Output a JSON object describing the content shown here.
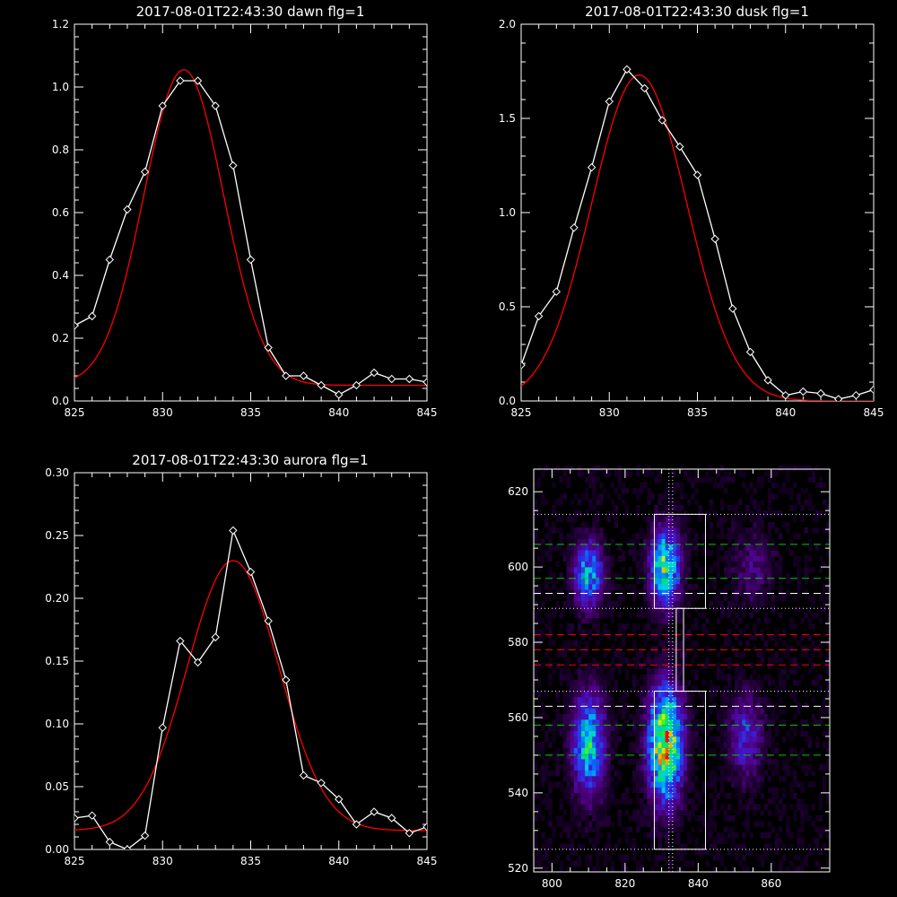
{
  "chart_data": [
    {
      "type": "line",
      "title": "2017-08-01T22:43:30 dawn flg=1",
      "xlim": [
        825,
        845
      ],
      "ylim": [
        0,
        1.2
      ],
      "xticks": [
        "825",
        "830",
        "835",
        "840",
        "845"
      ],
      "xtick_values": [
        825,
        830,
        835,
        840,
        845
      ],
      "yticks": [
        "0.0",
        "0.2",
        "0.4",
        "0.6",
        "0.8",
        "1.0",
        "1.2"
      ],
      "ytick_values": [
        0,
        0.2,
        0.4,
        0.6,
        0.8,
        1.0,
        1.2
      ],
      "series": [
        {
          "color": "#ffffff",
          "markers": "diamond",
          "x": [
            825,
            826,
            827,
            828,
            829,
            830,
            831,
            832,
            833,
            834,
            835,
            836,
            837,
            838,
            839,
            840,
            841,
            842,
            843,
            844,
            845
          ],
          "y": [
            0.24,
            0.27,
            0.45,
            0.61,
            0.73,
            0.94,
            1.02,
            1.02,
            0.94,
            0.75,
            0.45,
            0.17,
            0.08,
            0.08,
            0.05,
            0.02,
            0.05,
            0.09,
            0.07,
            0.07,
            0.06
          ]
        },
        {
          "color": "#ff0000",
          "fit": "gaussian",
          "center": 831.2,
          "amplitude": 1.005,
          "sigma": 2.25,
          "baseline": 0.05
        }
      ]
    },
    {
      "type": "line",
      "title": "2017-08-01T22:43:30 dusk flg=1",
      "xlim": [
        825,
        845
      ],
      "ylim": [
        0,
        2.0
      ],
      "xticks": [
        "825",
        "830",
        "835",
        "840",
        "845"
      ],
      "xtick_values": [
        825,
        830,
        835,
        840,
        845
      ],
      "yticks": [
        "0.0",
        "0.5",
        "1.0",
        "1.5",
        "2.0"
      ],
      "ytick_values": [
        0,
        0.5,
        1.0,
        1.5,
        2.0
      ],
      "series": [
        {
          "color": "#ffffff",
          "markers": "diamond",
          "x": [
            825,
            826,
            827,
            828,
            829,
            830,
            831,
            832,
            833,
            834,
            835,
            836,
            837,
            838,
            839,
            840,
            841,
            842,
            843,
            844,
            845
          ],
          "y": [
            0.19,
            0.45,
            0.58,
            0.92,
            1.24,
            1.59,
            1.76,
            1.66,
            1.49,
            1.35,
            1.2,
            0.86,
            0.49,
            0.26,
            0.11,
            0.03,
            0.05,
            0.04,
            0.01,
            0.03,
            0.06
          ]
        },
        {
          "color": "#ff0000",
          "fit": "gaussian",
          "center": 831.7,
          "amplitude": 1.73,
          "sigma": 2.7,
          "baseline": 0.0
        }
      ]
    },
    {
      "type": "line",
      "title": "2017-08-01T22:43:30 aurora flg=1",
      "xlim": [
        825,
        845
      ],
      "ylim": [
        0,
        0.3
      ],
      "xticks": [
        "825",
        "830",
        "835",
        "840",
        "845"
      ],
      "xtick_values": [
        825,
        830,
        835,
        840,
        845
      ],
      "yticks": [
        "0.00",
        "0.05",
        "0.10",
        "0.15",
        "0.20",
        "0.25",
        "0.30"
      ],
      "ytick_values": [
        0,
        0.05,
        0.1,
        0.15,
        0.2,
        0.25,
        0.3
      ],
      "series": [
        {
          "color": "#ffffff",
          "markers": "diamond",
          "x": [
            825,
            826,
            827,
            828,
            829,
            830,
            831,
            832,
            833,
            834,
            835,
            836,
            837,
            838,
            839,
            840,
            841,
            842,
            843,
            844,
            845
          ],
          "y": [
            0.025,
            0.027,
            0.006,
            0.0,
            0.011,
            0.097,
            0.166,
            0.149,
            0.169,
            0.254,
            0.221,
            0.182,
            0.135,
            0.059,
            0.053,
            0.04,
            0.02,
            0.03,
            0.025,
            0.013,
            0.018
          ]
        },
        {
          "color": "#ff0000",
          "fit": "gaussian",
          "center": 834.0,
          "amplitude": 0.215,
          "sigma": 2.6,
          "baseline": 0.015
        }
      ]
    },
    {
      "type": "heatmap",
      "title": "",
      "xlim": [
        795,
        876
      ],
      "ylim": [
        519,
        626
      ],
      "xticks": [
        "800",
        "820",
        "840",
        "860"
      ],
      "xtick_values": [
        800,
        820,
        840,
        860
      ],
      "yticks": [
        "520",
        "540",
        "560",
        "580",
        "600",
        "620"
      ],
      "ytick_values": [
        520,
        540,
        560,
        580,
        600,
        620
      ],
      "colormap": "rainbow on black",
      "blobs": [
        {
          "x": 810,
          "y": 598,
          "sx": 2.6,
          "sy": 5.5,
          "peak": 0.45
        },
        {
          "x": 831,
          "y": 600,
          "sx": 2.6,
          "sy": 6.5,
          "peak": 0.6
        },
        {
          "x": 810,
          "y": 553,
          "sx": 2.9,
          "sy": 8.5,
          "peak": 0.5
        },
        {
          "x": 831,
          "y": 553,
          "sx": 3.0,
          "sy": 9.5,
          "peak": 0.85
        },
        {
          "x": 853,
          "y": 555,
          "sx": 3.0,
          "sy": 7.0,
          "peak": 0.25
        },
        {
          "x": 855,
          "y": 600,
          "sx": 3.5,
          "sy": 6.0,
          "peak": 0.12
        }
      ],
      "boxes": [
        {
          "x0": 828,
          "x1": 842,
          "y0": 589,
          "y1": 614
        },
        {
          "x0": 828,
          "x1": 842,
          "y0": 525,
          "y1": 567
        },
        {
          "x0": 834,
          "x1": 836,
          "y0": 567,
          "y1": 589
        }
      ],
      "hlines": [
        {
          "y": 614,
          "color": "#ffffff",
          "dash": "dotted"
        },
        {
          "y": 589,
          "color": "#ffffff",
          "dash": "dotted"
        },
        {
          "y": 567,
          "color": "#ffffff",
          "dash": "dotted"
        },
        {
          "y": 525,
          "color": "#ffffff",
          "dash": "dotted"
        },
        {
          "y": 606,
          "color": "#00cc00",
          "dash": "dashed"
        },
        {
          "y": 597,
          "color": "#00cc00",
          "dash": "dashed"
        },
        {
          "y": 593,
          "color": "#ffffff",
          "dash": "dashed"
        },
        {
          "y": 582,
          "color": "#ff0000",
          "dash": "dashed"
        },
        {
          "y": 578,
          "color": "#ff0000",
          "dash": "dashed"
        },
        {
          "y": 574,
          "color": "#ff0000",
          "dash": "dashed"
        },
        {
          "y": 563,
          "color": "#ffffff",
          "dash": "dashed"
        },
        {
          "y": 558,
          "color": "#00cc00",
          "dash": "dashed"
        },
        {
          "y": 550,
          "color": "#00cc00",
          "dash": "dashed"
        }
      ],
      "vlines": [
        {
          "x": 832,
          "color": "#ffffff",
          "dash": "dotted"
        },
        {
          "x": 833,
          "color": "#ffffff",
          "dash": "dotted"
        }
      ]
    }
  ]
}
